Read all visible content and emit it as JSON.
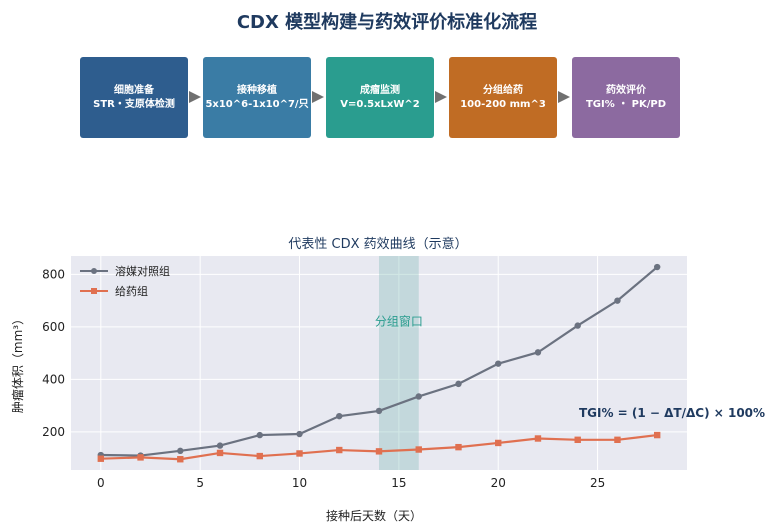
{
  "page_title": "CDX 模型构建与药效评价标准化流程",
  "flow_steps": [
    {
      "title": "细胞准备",
      "detail": "STR・支原体检测",
      "color": "#2e5d8e"
    },
    {
      "title": "接种移植",
      "detail": "5x10^6-1x10^7/只",
      "color": "#3a7ca5"
    },
    {
      "title": "成瘤监测",
      "detail": "V=0.5xLxW^2",
      "color": "#2a9d8f"
    },
    {
      "title": "分组给药",
      "detail": "100-200 mm^3",
      "color": "#c06c24"
    },
    {
      "title": "药效评价",
      "detail": "TGI% ・ PK/PD",
      "color": "#8c6aa0"
    }
  ],
  "chart_data": {
    "type": "line",
    "title": "代表性 CDX 药效曲线（示意）",
    "xlabel": "接种后天数（天）",
    "ylabel": "肿瘤体积（mm³）",
    "xlim": [
      -1.5,
      29.5
    ],
    "ylim": [
      55,
      870
    ],
    "xticks": [
      0,
      5,
      10,
      15,
      20,
      25
    ],
    "yticks": [
      200,
      400,
      600,
      800
    ],
    "grid": true,
    "legend_position": "top-left",
    "x": [
      0,
      2,
      4,
      6,
      8,
      10,
      12,
      14,
      16,
      18,
      20,
      22,
      24,
      26,
      28
    ],
    "series": [
      {
        "name": "溶媒对照组",
        "color": "#6b7280",
        "marker": "circle",
        "values": [
          112,
          110,
          128,
          148,
          188,
          192,
          260,
          280,
          335,
          383,
          460,
          503,
          605,
          700,
          828
        ]
      },
      {
        "name": "给药组",
        "color": "#e07050",
        "marker": "square",
        "values": [
          98,
          103,
          96,
          120,
          108,
          118,
          131,
          126,
          133,
          142,
          158,
          175,
          170,
          170,
          188
        ]
      }
    ],
    "shaded_region": {
      "x": [
        14,
        16
      ],
      "label": "分组窗口",
      "label_color": "#2a9d8f"
    },
    "annotation": "TGI% = (1 − ΔT/ΔC) × 100%"
  }
}
